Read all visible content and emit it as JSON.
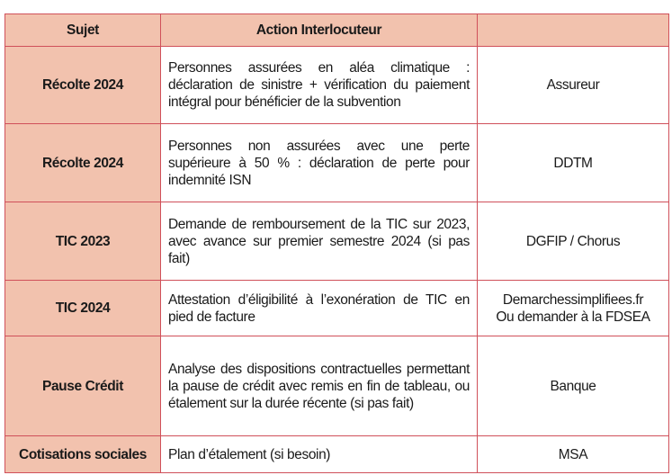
{
  "headers": [
    "Sujet",
    "Action Interlocuteur",
    ""
  ],
  "rows": [
    {
      "subject": "Récolte 2024",
      "action": "Personnes assurées en aléa climatique : déclaration de sinistre + vérification du paiement intégral pour bénéficier de la subvention",
      "contact": "Assureur"
    },
    {
      "subject": "Récolte 2024",
      "action": "Personnes non assurées avec une perte supérieure à 50 % : déclaration de perte pour indemnité ISN",
      "contact": "DDTM"
    },
    {
      "subject": "TIC 2023",
      "action": "Demande de remboursement de la TIC sur 2023, avec avance sur premier semestre 2024 (si pas fait)",
      "contact": "DGFIP / Chorus"
    },
    {
      "subject": "TIC 2024",
      "action": "Attestation d’éligibilité à l’exonération de TIC en pied de facture",
      "contact": "Demarchessimplifiees.fr",
      "contact2": "Ou demander à la FDSEA"
    },
    {
      "subject": "Pause Crédit",
      "action": "Analyse des dispositions contractuelles permettant la pause de crédit avec remis en fin de tableau, ou étalement sur la durée récente (si pas fait)",
      "contact": "Banque"
    },
    {
      "subject": "Cotisations sociales",
      "action": "Plan d’étalement (si besoin)",
      "contact": "MSA"
    }
  ],
  "colors": {
    "header_bg": "#f2c2ae",
    "border": "#d0505a"
  }
}
